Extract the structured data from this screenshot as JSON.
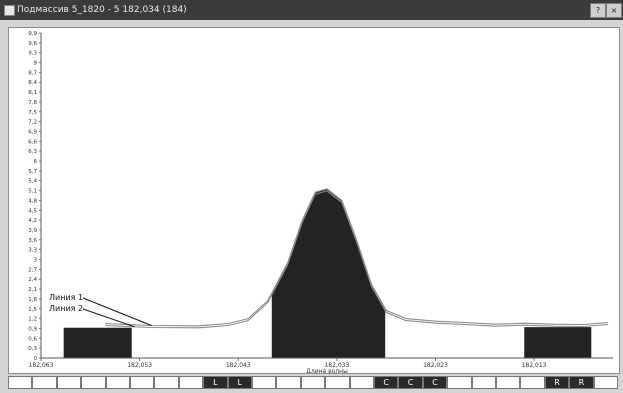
{
  "window": {
    "title": "Подмассив 5_1820 - 5 182,034 (184)",
    "buttons": [
      {
        "name": "help-button",
        "label": "?"
      },
      {
        "name": "close-button",
        "label": "×"
      }
    ]
  },
  "chart_data": {
    "type": "area",
    "xlabel": "Длина волны",
    "xlim": [
      182.063,
      182.005
    ],
    "ylim": [
      0,
      9.9
    ],
    "grid": false,
    "x_ticks": [
      {
        "v": 182.063,
        "label": "182,063"
      },
      {
        "v": 182.053,
        "label": "182,053"
      },
      {
        "v": 182.043,
        "label": "182,043"
      },
      {
        "v": 182.033,
        "label": "182,033"
      },
      {
        "v": 182.023,
        "label": "182,023"
      },
      {
        "v": 182.013,
        "label": "182,013"
      }
    ],
    "y_ticks": [
      "0",
      "0,3",
      "0,6",
      "0,9",
      "1,2",
      "1,5",
      "1,8",
      "2,1",
      "2,4",
      "2,7",
      "3",
      "3,3",
      "3,6",
      "3,9",
      "4,2",
      "4,5",
      "4,8",
      "5,1",
      "5,4",
      "5,7",
      "6",
      "6,3",
      "6,6",
      "6,9",
      "7,2",
      "7,5",
      "7,8",
      "8,1",
      "8,4",
      "8,7",
      "9",
      "9,3",
      "9,6",
      "9,9"
    ],
    "series": [
      {
        "name": "Линия 1",
        "points": [
          [
            182.0565,
            1.05
          ],
          [
            182.052,
            0.99
          ],
          [
            182.047,
            0.98
          ],
          [
            182.044,
            1.05
          ],
          [
            182.042,
            1.2
          ],
          [
            182.04,
            1.75
          ],
          [
            182.038,
            2.9
          ],
          [
            182.0365,
            4.2
          ],
          [
            182.0352,
            5.05
          ],
          [
            182.034,
            5.15
          ],
          [
            182.0325,
            4.8
          ],
          [
            182.031,
            3.6
          ],
          [
            182.0295,
            2.25
          ],
          [
            182.028,
            1.45
          ],
          [
            182.026,
            1.2
          ],
          [
            182.023,
            1.12
          ],
          [
            182.02,
            1.08
          ],
          [
            182.017,
            1.03
          ],
          [
            182.014,
            1.06
          ],
          [
            182.011,
            1.03
          ],
          [
            182.008,
            1.02
          ],
          [
            182.0055,
            1.08
          ]
        ]
      },
      {
        "name": "Линия 2",
        "points": [
          [
            182.0565,
            0.99
          ],
          [
            182.052,
            0.93
          ],
          [
            182.047,
            0.92
          ],
          [
            182.044,
            0.99
          ],
          [
            182.042,
            1.14
          ],
          [
            182.04,
            1.69
          ],
          [
            182.038,
            2.84
          ],
          [
            182.0365,
            4.14
          ],
          [
            182.0352,
            4.99
          ],
          [
            182.034,
            5.09
          ],
          [
            182.0325,
            4.74
          ],
          [
            182.031,
            3.54
          ],
          [
            182.0295,
            2.19
          ],
          [
            182.028,
            1.39
          ],
          [
            182.026,
            1.14
          ],
          [
            182.023,
            1.06
          ],
          [
            182.02,
            1.02
          ],
          [
            182.017,
            0.97
          ],
          [
            182.014,
            1.0
          ],
          [
            182.011,
            0.97
          ],
          [
            182.008,
            0.96
          ],
          [
            182.0055,
            1.02
          ]
        ]
      }
    ],
    "regions": [
      {
        "x0": 182.0607,
        "x1": 182.0538,
        "y": 0.92
      },
      {
        "x0": 182.0396,
        "x1": 182.0281,
        "y": null
      },
      {
        "x0": 182.014,
        "x1": 182.0072,
        "y": 0.94
      }
    ],
    "annotations": [
      {
        "text": "Линия 1",
        "series": 0,
        "x": 182.0518
      },
      {
        "text": "Линия 2",
        "series": 1,
        "x": 182.0535
      }
    ]
  },
  "bottom_strip": [
    {
      "label": "",
      "dark": false
    },
    {
      "label": "",
      "dark": false
    },
    {
      "label": "",
      "dark": false
    },
    {
      "label": "",
      "dark": false
    },
    {
      "label": "",
      "dark": false
    },
    {
      "label": "",
      "dark": false
    },
    {
      "label": "",
      "dark": false
    },
    {
      "label": "",
      "dark": false
    },
    {
      "label": "L",
      "dark": true
    },
    {
      "label": "L",
      "dark": true
    },
    {
      "label": "",
      "dark": false
    },
    {
      "label": "",
      "dark": false
    },
    {
      "label": "",
      "dark": false
    },
    {
      "label": "",
      "dark": false
    },
    {
      "label": "",
      "dark": false
    },
    {
      "label": "C",
      "dark": true
    },
    {
      "label": "C",
      "dark": true
    },
    {
      "label": "C",
      "dark": true
    },
    {
      "label": "",
      "dark": false
    },
    {
      "label": "",
      "dark": false
    },
    {
      "label": "",
      "dark": false
    },
    {
      "label": "",
      "dark": false
    },
    {
      "label": "R",
      "dark": true
    },
    {
      "label": "R",
      "dark": true
    },
    {
      "label": "",
      "dark": false
    }
  ]
}
